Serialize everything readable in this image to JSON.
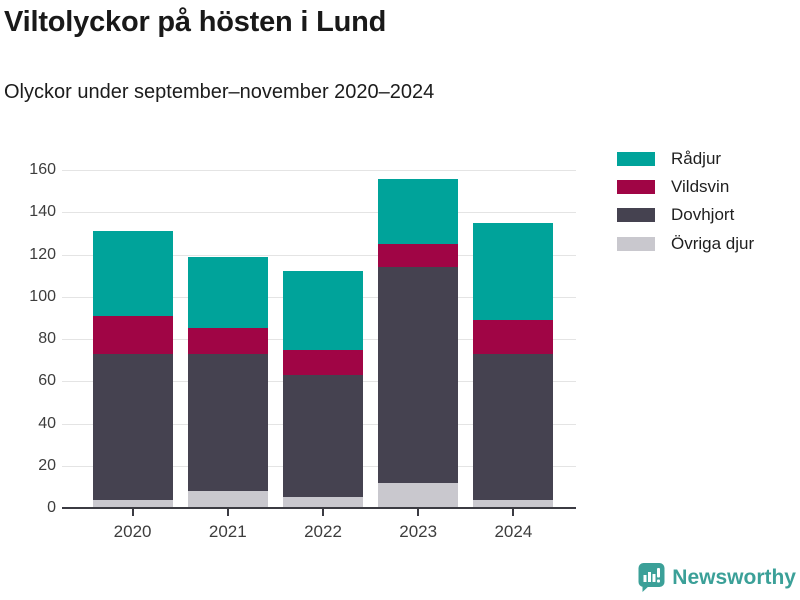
{
  "title": "Viltolyckor på hösten i Lund",
  "subtitle": "Olyckor under september–november 2020–2024",
  "colors": {
    "grid": "#e4e4e4",
    "axis": "#3b3b42",
    "tick_label": "#3d3d3d",
    "brand_teal": "#3ba098"
  },
  "chart_data": {
    "type": "bar",
    "stacked": true,
    "title": "Viltolyckor på hösten i Lund",
    "subtitle": "Olyckor under september–november 2020–2024",
    "categories": [
      "2020",
      "2021",
      "2022",
      "2023",
      "2024"
    ],
    "series": [
      {
        "name": "Rådjur",
        "key": "radjur",
        "color": "#00a39a",
        "values": [
          40,
          34,
          37,
          31,
          46
        ]
      },
      {
        "name": "Vildsvin",
        "key": "vildsvin",
        "color": "#a00545",
        "values": [
          18,
          12,
          12,
          11,
          16
        ]
      },
      {
        "name": "Dovhjort",
        "key": "dovhjort",
        "color": "#454250",
        "values": [
          69,
          65,
          58,
          102,
          69
        ]
      },
      {
        "name": "Övriga djur",
        "key": "ovriga-djur",
        "color": "#c9c8ce",
        "values": [
          4,
          8,
          5,
          12,
          4
        ]
      }
    ],
    "totals": [
      131,
      119,
      112,
      156,
      135
    ],
    "ylim": [
      0,
      160
    ],
    "yticks": [
      0,
      20,
      40,
      60,
      80,
      100,
      120,
      140,
      160
    ],
    "grid": true,
    "legend_position": "top-right"
  },
  "footer": {
    "brand": "Newsworthy"
  }
}
